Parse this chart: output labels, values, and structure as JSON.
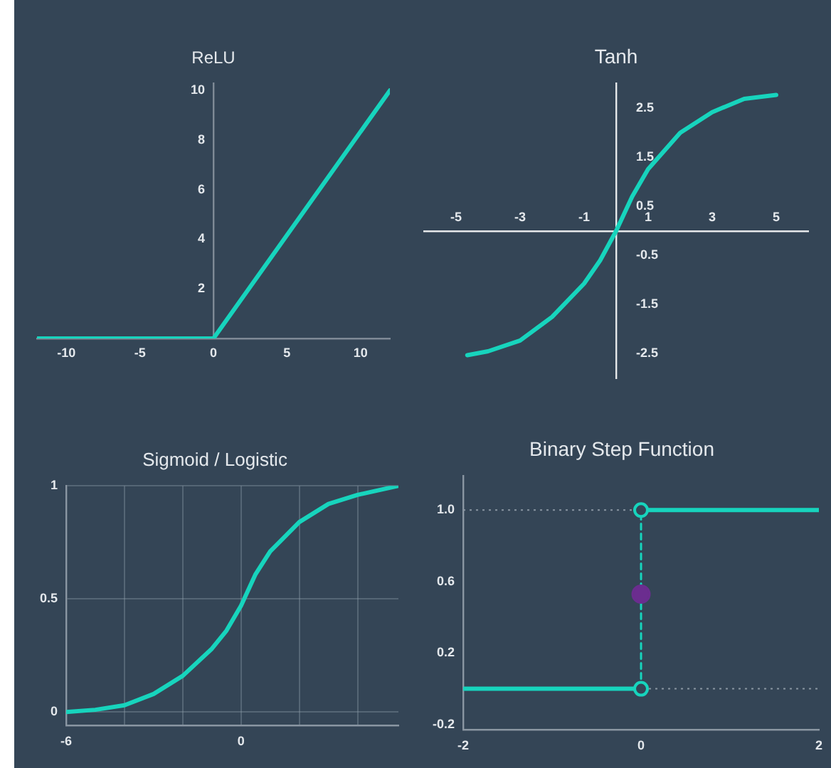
{
  "chart_data": [
    {
      "type": "line",
      "title": "ReLU",
      "xlim": [
        -12,
        12
      ],
      "ylim": [
        0,
        10.3
      ],
      "xticks": [
        -10,
        -5,
        0,
        5,
        10
      ],
      "yticks": [
        2,
        4,
        6,
        8,
        10
      ],
      "grid": false,
      "legend": false,
      "marker": "none",
      "series": [
        {
          "x": [
            -12,
            0,
            12
          ],
          "values": [
            0,
            0,
            10
          ],
          "color": "#17d4bd"
        }
      ]
    },
    {
      "type": "line",
      "title": "Tanh",
      "xlim": [
        -6,
        6
      ],
      "ylim": [
        -3,
        3
      ],
      "xticks": [
        -5,
        -3,
        -1,
        1,
        3,
        5
      ],
      "yticks": [
        2.5,
        1.5,
        0.5,
        -0.5,
        -1.5,
        -2.5
      ],
      "grid": false,
      "legend": false,
      "marker": "none",
      "series": [
        {
          "x": [
            -4.65,
            -4,
            -3,
            -2,
            -1,
            -0.5,
            0,
            0.5,
            1,
            2,
            3,
            4,
            5
          ],
          "values": [
            -2.53,
            -2.45,
            -2.23,
            -1.75,
            -1.07,
            -0.6,
            0,
            0.7,
            1.26,
            2.0,
            2.42,
            2.69,
            2.77
          ],
          "color": "#17d4bd"
        }
      ]
    },
    {
      "type": "line",
      "title": "Sigmoid / Logistic",
      "xlim": [
        -6,
        5.4
      ],
      "ylim": [
        -0.06,
        1
      ],
      "xticks": [
        -6,
        {
          "value": -4,
          "label": null
        },
        {
          "value": -2,
          "label": null
        },
        0,
        {
          "value": 2,
          "label": null
        },
        {
          "value": 4,
          "label": null
        }
      ],
      "yticks": [
        0,
        0.5,
        1
      ],
      "grid": true,
      "legend": false,
      "marker": "none",
      "series": [
        {
          "x": [
            -6,
            -5,
            -4,
            -3,
            -2,
            -1,
            -0.5,
            0,
            0.5,
            1,
            2,
            3,
            4,
            5.4
          ],
          "values": [
            0,
            0.01,
            0.03,
            0.08,
            0.16,
            0.28,
            0.36,
            0.47,
            0.61,
            0.71,
            0.84,
            0.92,
            0.96,
            1
          ],
          "color": "#17d4bd"
        }
      ]
    },
    {
      "type": "line",
      "title": "Binary Step Function",
      "xlim": [
        -2,
        2
      ],
      "ylim": [
        -0.23,
        1.19
      ],
      "xticks": [
        -2,
        0,
        2
      ],
      "yticks": [
        {
          "value": 1,
          "label": "1.0"
        },
        0.6,
        0.2,
        -0.2
      ],
      "grid": false,
      "legend": false,
      "marker": "none",
      "ref_lines": [
        {
          "axis": "y",
          "value": 1,
          "color": "#8a96a2",
          "line_style": "dotted"
        },
        {
          "axis": "y",
          "value": 0,
          "color": "#8a96a2",
          "line_style": "dotted"
        }
      ],
      "series": [
        {
          "x": [
            -2,
            0
          ],
          "values": [
            0,
            0
          ],
          "color": "#17d4bd"
        },
        {
          "x": [
            0,
            2
          ],
          "values": [
            1,
            1
          ],
          "color": "#17d4bd"
        },
        {
          "x": [
            0,
            0
          ],
          "values": [
            0,
            1
          ],
          "color": "#17d4bd",
          "line_style": "dashed"
        },
        {
          "type": "scatter",
          "x": [
            0,
            0
          ],
          "values": [
            0,
            1
          ],
          "color": "#17d4bd",
          "marker": "circle"
        },
        {
          "type": "scatter",
          "x": [
            0
          ],
          "values": [
            0.53
          ],
          "color": "#6b2d8f",
          "marker": "circle"
        }
      ]
    }
  ]
}
